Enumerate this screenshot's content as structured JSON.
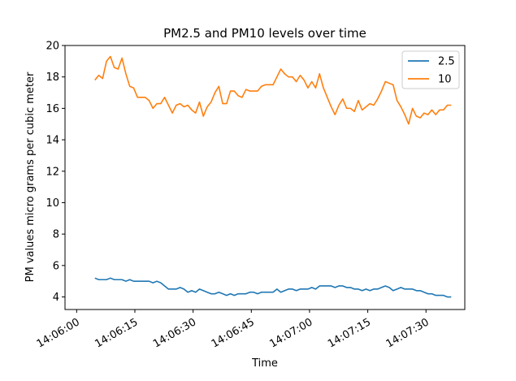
{
  "chart_data": {
    "type": "line",
    "title": "PM2.5 and PM10 levels over time",
    "xlabel": "Time",
    "ylabel": "PM values micro grams per cubic meter",
    "x_start_time": "14:06:00",
    "x_tick_labels": [
      "14:06:00",
      "14:06:15",
      "14:06:30",
      "14:06:45",
      "14:07:00",
      "14:07:15",
      "14:07:30"
    ],
    "xlim": [
      "14:05:57",
      "14:07:40"
    ],
    "ylim": [
      3.2,
      20.0
    ],
    "y_ticks": [
      4,
      6,
      8,
      10,
      12,
      14,
      16,
      18,
      20
    ],
    "legend_position": "top-right",
    "grid": false,
    "series": [
      {
        "name": "2.5",
        "color": "#1f77b4",
        "values": [
          5.2,
          5.1,
          5.1,
          5.1,
          5.2,
          5.1,
          5.1,
          5.1,
          5.0,
          5.1,
          5.0,
          5.0,
          5.0,
          5.0,
          5.0,
          4.9,
          5.0,
          4.9,
          4.7,
          4.5,
          4.5,
          4.5,
          4.6,
          4.5,
          4.3,
          4.4,
          4.3,
          4.5,
          4.4,
          4.3,
          4.2,
          4.2,
          4.3,
          4.2,
          4.1,
          4.2,
          4.1,
          4.2,
          4.2,
          4.2,
          4.3,
          4.3,
          4.2,
          4.3,
          4.3,
          4.3,
          4.3,
          4.5,
          4.3,
          4.4,
          4.5,
          4.5,
          4.4,
          4.5,
          4.5,
          4.5,
          4.6,
          4.5,
          4.7,
          4.7,
          4.7,
          4.7,
          4.6,
          4.7,
          4.7,
          4.6,
          4.6,
          4.5,
          4.5,
          4.4,
          4.5,
          4.4,
          4.5,
          4.5,
          4.6,
          4.7,
          4.6,
          4.4,
          4.5,
          4.6,
          4.5,
          4.5,
          4.5,
          4.4,
          4.4,
          4.3,
          4.2,
          4.2,
          4.1,
          4.1,
          4.1,
          4.0,
          4.0
        ]
      },
      {
        "name": "10",
        "color": "#ff7f0e",
        "values": [
          17.8,
          18.1,
          17.9,
          19.0,
          19.3,
          18.6,
          18.5,
          19.2,
          18.2,
          17.4,
          17.3,
          16.7,
          16.7,
          16.7,
          16.5,
          16.0,
          16.3,
          16.3,
          16.7,
          16.2,
          15.7,
          16.2,
          16.3,
          16.1,
          16.2,
          15.9,
          15.7,
          16.4,
          15.5,
          16.1,
          16.4,
          17.0,
          17.4,
          16.3,
          16.3,
          17.1,
          17.1,
          16.8,
          16.7,
          17.2,
          17.1,
          17.1,
          17.1,
          17.4,
          17.5,
          17.5,
          17.5,
          18.0,
          18.5,
          18.2,
          18.0,
          18.0,
          17.7,
          18.1,
          17.8,
          17.3,
          17.7,
          17.3,
          18.2,
          17.3,
          16.7,
          16.1,
          15.6,
          16.2,
          16.6,
          16.0,
          16.0,
          15.8,
          16.5,
          15.9,
          16.1,
          16.3,
          16.2,
          16.6,
          17.1,
          17.7,
          17.6,
          17.5,
          16.5,
          16.1,
          15.6,
          15.0,
          16.0,
          15.5,
          15.4,
          15.7,
          15.6,
          15.9,
          15.6,
          15.9,
          15.9,
          16.2,
          16.2
        ]
      }
    ]
  }
}
